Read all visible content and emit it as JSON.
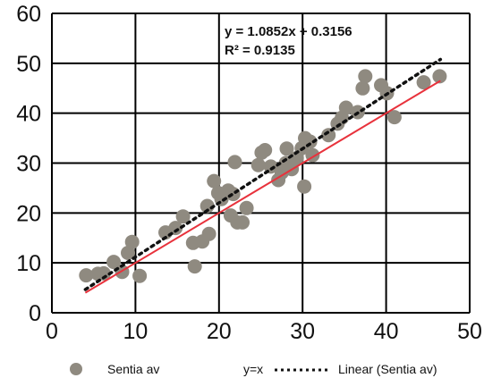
{
  "chart_data": {
    "type": "scatter",
    "xlim": [
      0,
      50
    ],
    "ylim": [
      0,
      60
    ],
    "x_ticks": [
      "0",
      "10",
      "20",
      "30",
      "40",
      "50"
    ],
    "y_ticks": [
      "0",
      "10",
      "20",
      "30",
      "40",
      "50",
      "60"
    ],
    "grid": true,
    "equation": "y = 1.0852x + 0.3156",
    "r_squared": "R² = 0.9135",
    "series": [
      {
        "name": "Sentia av",
        "type": "scatter",
        "color": "#8f8a80",
        "points": [
          [
            4.1,
            7.5
          ],
          [
            5.5,
            7.8
          ],
          [
            6.2,
            7.9
          ],
          [
            7.4,
            10.2
          ],
          [
            8.4,
            8.2
          ],
          [
            9.1,
            12.0
          ],
          [
            9.6,
            14.2
          ],
          [
            10.5,
            7.4
          ],
          [
            13.6,
            16.1
          ],
          [
            14.8,
            17.0
          ],
          [
            15.7,
            19.3
          ],
          [
            17.1,
            9.3
          ],
          [
            16.9,
            14.0
          ],
          [
            18.0,
            14.3
          ],
          [
            18.8,
            15.8
          ],
          [
            18.6,
            21.4
          ],
          [
            19.4,
            26.4
          ],
          [
            19.9,
            24.0
          ],
          [
            20.3,
            22.8
          ],
          [
            21.1,
            24.5
          ],
          [
            21.4,
            19.5
          ],
          [
            21.7,
            23.8
          ],
          [
            22.2,
            18.1
          ],
          [
            21.9,
            30.2
          ],
          [
            22.8,
            18.1
          ],
          [
            23.3,
            21.0
          ],
          [
            24.7,
            29.6
          ],
          [
            25.1,
            32.1
          ],
          [
            25.5,
            32.6
          ],
          [
            26.2,
            29.3
          ],
          [
            27.1,
            26.6
          ],
          [
            27.5,
            28.1
          ],
          [
            28.0,
            30.0
          ],
          [
            28.1,
            32.9
          ],
          [
            28.7,
            28.8
          ],
          [
            29.3,
            31.0
          ],
          [
            29.9,
            33.0
          ],
          [
            30.2,
            25.3
          ],
          [
            30.3,
            35.0
          ],
          [
            30.9,
            34.3
          ],
          [
            31.2,
            31.6
          ],
          [
            33.1,
            35.6
          ],
          [
            34.2,
            37.9
          ],
          [
            34.7,
            39.1
          ],
          [
            35.2,
            41.1
          ],
          [
            36.6,
            40.2
          ],
          [
            37.2,
            45.0
          ],
          [
            37.5,
            47.4
          ],
          [
            39.4,
            45.6
          ],
          [
            40.1,
            44.0
          ],
          [
            41.0,
            39.2
          ],
          [
            44.5,
            46.2
          ],
          [
            46.4,
            47.4
          ]
        ]
      },
      {
        "name": "y=x",
        "type": "line",
        "color": "#e8323c",
        "x": [
          4,
          46.5
        ],
        "y": [
          4,
          46.5
        ]
      },
      {
        "name": "Linear (Sentia av)",
        "type": "line",
        "style": "dotted",
        "color": "#111111",
        "x": [
          4,
          46.5
        ],
        "y": [
          4.66,
          50.78
        ]
      }
    ],
    "legend": {
      "placement": "bottom",
      "entries": [
        "Sentia av",
        "y=x",
        "Linear (Sentia av)"
      ]
    }
  }
}
